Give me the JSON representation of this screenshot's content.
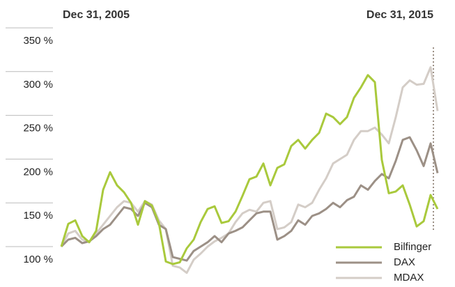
{
  "chart_data": {
    "type": "line",
    "categories": [
      "Dec 31, 2005",
      null,
      null,
      null,
      null,
      null,
      null,
      null,
      null,
      null,
      null,
      null,
      null,
      null,
      null,
      null,
      null,
      null,
      null,
      null,
      null,
      null,
      null,
      null,
      null,
      null,
      null,
      null,
      null,
      null,
      null,
      null,
      null,
      null,
      null,
      null,
      null,
      null,
      null,
      null,
      null,
      null,
      null,
      null,
      null,
      null,
      null,
      null,
      null,
      null,
      null,
      null,
      null,
      null,
      "Dec 31, 2015"
    ],
    "series": [
      {
        "name": "Bilfinger",
        "color": "#a9c93c",
        "values": [
          100,
          126,
          130,
          112,
          105,
          118,
          165,
          185,
          170,
          162,
          150,
          125,
          152,
          147,
          127,
          83,
          80,
          82,
          98,
          108,
          128,
          143,
          146,
          127,
          129,
          140,
          158,
          177,
          180,
          195,
          170,
          190,
          194,
          215,
          222,
          212,
          222,
          230,
          252,
          248,
          240,
          248,
          270,
          282,
          296,
          288,
          199,
          161,
          163,
          170,
          148,
          123,
          129,
          159,
          143
        ]
      },
      {
        "name": "DAX",
        "color": "#9c9086",
        "values": [
          100,
          108,
          110,
          104,
          106,
          112,
          120,
          125,
          135,
          145,
          143,
          135,
          150,
          145,
          125,
          120,
          88,
          86,
          84,
          95,
          100,
          105,
          112,
          105,
          115,
          118,
          122,
          130,
          138,
          140,
          140,
          108,
          112,
          118,
          130,
          125,
          135,
          138,
          143,
          150,
          145,
          153,
          157,
          170,
          165,
          175,
          183,
          178,
          198,
          222,
          225,
          210,
          192,
          218,
          184
        ]
      },
      {
        "name": "MDAX",
        "color": "#d4cdc7",
        "values": [
          100,
          115,
          118,
          108,
          105,
          115,
          125,
          135,
          145,
          152,
          150,
          140,
          152,
          148,
          130,
          120,
          78,
          76,
          70,
          85,
          92,
          100,
          106,
          110,
          115,
          128,
          138,
          142,
          140,
          150,
          152,
          120,
          122,
          128,
          148,
          145,
          150,
          165,
          178,
          195,
          200,
          205,
          222,
          232,
          232,
          236,
          228,
          218,
          248,
          282,
          290,
          285,
          286,
          305,
          255
        ]
      }
    ],
    "ylim": [
      100,
      350
    ],
    "yticks": [
      {
        "value": 100,
        "label": "100 %"
      },
      {
        "value": 150,
        "label": "150 %"
      },
      {
        "value": 200,
        "label": "200 %"
      },
      {
        "value": 250,
        "label": "250 %"
      },
      {
        "value": 300,
        "label": "300 %"
      },
      {
        "value": 350,
        "label": "350 %"
      }
    ],
    "grid": true,
    "legend": "lower right"
  }
}
